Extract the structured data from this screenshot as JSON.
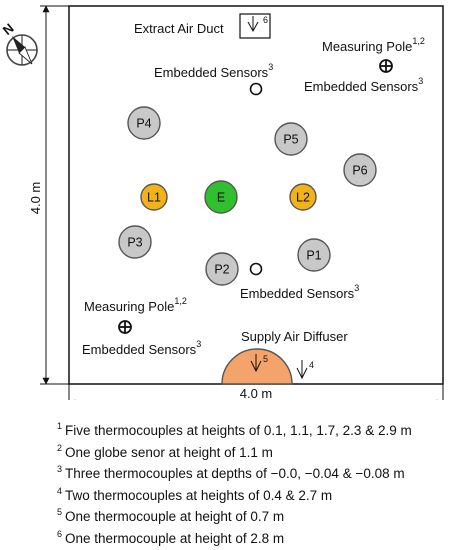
{
  "labels": {
    "compass": "N",
    "extract": "Extract Air Duct",
    "extract_ref": "6",
    "measuring_pole": "Measuring Pole",
    "measuring_pole_ref": "1,2",
    "embedded": "Embedded Sensors",
    "embedded_ref": "3",
    "supply": "Supply Air Diffuser",
    "diffuser_ref": "5",
    "supply_ref": "4",
    "width": "4.0 m",
    "height": "4.0 m"
  },
  "occupants": {
    "P1": "P1",
    "P2": "P2",
    "P3": "P3",
    "P4": "P4",
    "P5": "P5",
    "P6": "P6",
    "L1": "L1",
    "L2": "L2",
    "E": "E"
  },
  "colors": {
    "occupant": "#c8c8c8",
    "lamp": "#f2b21a",
    "equipment": "#2fbf2f",
    "diffuser": "#f4a36a",
    "outline": "#555555"
  },
  "footnotes": [
    {
      "num": "1",
      "text": "Five thermocouples at heights of 0.1, 1.1, 1.7, 2.3 & 2.9 m"
    },
    {
      "num": "2",
      "text": "One globe senor at height of 1.1 m"
    },
    {
      "num": "3",
      "text": "Three thermocouples at depths of −0.0, −0.04 & −0.08 m"
    },
    {
      "num": "4",
      "text": "Two thermocouples at heights of 0.4 & 2.7 m"
    },
    {
      "num": "5",
      "text": "One thermocouple at height of 0.7 m"
    },
    {
      "num": "6",
      "text": "One thermocouple at height of 2.8 m"
    }
  ]
}
